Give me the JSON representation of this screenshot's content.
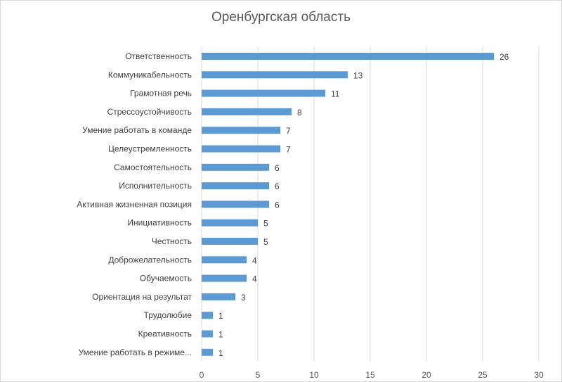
{
  "chart_data": {
    "type": "bar",
    "orientation": "horizontal",
    "title": "Оренбургская область",
    "xlabel": "",
    "ylabel": "",
    "categories": [
      "Ответственность",
      "Коммуникабельность",
      "Грамотная речь",
      "Стрессоустойчивость",
      "Умение работать в команде",
      "Целеустремленность",
      "Самостоятельность",
      "Исполнительность",
      "Активная жизненная позиция",
      "Инициативность",
      "Честность",
      "Доброжелательность",
      "Обучаемость",
      "Ориентация на результат",
      "Трудолюбие",
      "Креативность",
      "Умение работать в режиме..."
    ],
    "values": [
      26,
      13,
      11,
      8,
      7,
      7,
      6,
      6,
      6,
      5,
      5,
      4,
      4,
      3,
      1,
      1,
      1
    ],
    "xlim": [
      0,
      30
    ],
    "xticks": [
      0,
      5,
      10,
      15,
      20,
      25,
      30
    ],
    "grid": true,
    "legend": "none",
    "bar_color": "#5b9bd5",
    "grid_color": "#d9d9d9"
  }
}
